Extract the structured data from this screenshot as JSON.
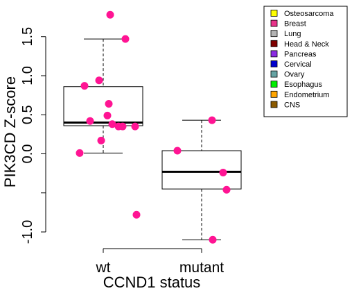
{
  "chart_data": {
    "type": "box",
    "title": "",
    "xlabel": "CCND1 status",
    "ylabel": "PIK3CD Z-score",
    "ylim": [
      -1.05,
      1.75
    ],
    "yticks": [
      -1.0,
      -0.5,
      0.0,
      0.5,
      1.0,
      1.5
    ],
    "ytick_labels": [
      "-1.0",
      "",
      "0.0",
      "0.5",
      "1.0",
      "1.5"
    ],
    "categories": [
      "wt",
      "mutant"
    ],
    "grid": false,
    "legend_position": "top-right",
    "point_color": "#FF1493",
    "boxes": [
      {
        "name": "wt",
        "whisker_low": 0.01,
        "q1": 0.36,
        "median": 0.4,
        "q3": 0.86,
        "whisker_high": 1.47
      },
      {
        "name": "mutant",
        "whisker_low": -1.1,
        "q1": -0.45,
        "median": -0.23,
        "q3": 0.04,
        "whisker_high": 0.43
      }
    ],
    "points": [
      {
        "group": "wt",
        "values": [
          1.78,
          1.47,
          0.87,
          0.94,
          0.64,
          0.49,
          0.42,
          0.38,
          0.35,
          0.35,
          0.35,
          0.17,
          0.01,
          -0.78
        ]
      },
      {
        "group": "mutant",
        "values": [
          0.43,
          0.04,
          -0.24,
          -0.46,
          -1.1
        ]
      }
    ]
  },
  "legend": {
    "items": [
      {
        "label": "Osteosarcoma",
        "color": "#FFFF00"
      },
      {
        "label": "Breast",
        "color": "#E8338A"
      },
      {
        "label": "Lung",
        "color": "#B3B3B3"
      },
      {
        "label": "Head & Neck",
        "color": "#7F0000"
      },
      {
        "label": "Pancreas",
        "color": "#8A2BE2"
      },
      {
        "label": "Cervical",
        "color": "#0000CD"
      },
      {
        "label": "Ovary",
        "color": "#66A3A3"
      },
      {
        "label": "Esophagus",
        "color": "#00EE00"
      },
      {
        "label": "Endometrium",
        "color": "#FFA500"
      },
      {
        "label": "CNS",
        "color": "#8B5A00"
      }
    ]
  }
}
